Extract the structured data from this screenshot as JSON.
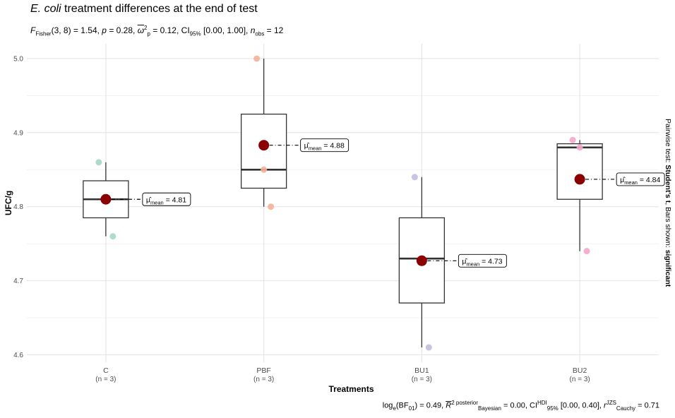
{
  "title": {
    "italic_part": "E. coli",
    "rest": " treatment differences at the end of test"
  },
  "subtitle": {
    "stat_name": "F",
    "stat_sub": "Fisher",
    "df": "(3, 8)",
    "stat_value": " = 1.54, ",
    "p_symbol": "p",
    "p_value": " = 0.28, ",
    "effect_symbol": "ω",
    "effect_sup": "2",
    "effect_sub": "p",
    "effect_value": " = 0.12, CI",
    "ci_sub": "95%",
    "ci_value": " [0.00, 1.00], ",
    "n_symbol": "n",
    "n_sub": "obs",
    "n_value": " = 12"
  },
  "caption": {
    "log_text": "log",
    "log_sub": "e",
    "bf_text": "(BF",
    "bf_sub": "01",
    "bf_value": ") = 0.49, ",
    "r_symbol": "R",
    "r_sup": "2 posterior",
    "r_sub": "Bayesian",
    "r_value": " = 0.00, CI",
    "ci_sup": "HDI",
    "ci_sub": "95%",
    "ci_value": " [0.00, 0.40], ",
    "rc_symbol": "r",
    "rc_sup": "JZS",
    "rc_sub": "Cauchy",
    "rc_value": " = 0.71"
  },
  "right_label": {
    "prefix": "Pairwise test: ",
    "test": "Student's t",
    "middle": ", Bars shown: ",
    "shown": "significant"
  },
  "chart_data": {
    "type": "box",
    "xlabel": "Treatments",
    "ylabel": "UFC/g",
    "ylim": [
      4.59,
      5.02
    ],
    "yticks": [
      4.6,
      4.7,
      4.8,
      4.9,
      5.0
    ],
    "ytick_labels": [
      "4.6",
      "4.7",
      "4.8",
      "4.9",
      "5.0"
    ],
    "grid": true,
    "mean_label_prefix": "μ̂",
    "mean_label_sub": "mean",
    "mean_color": "#8B0000",
    "groups": [
      {
        "name": "C",
        "n_label": "(n = 3)",
        "points": [
          4.86,
          4.81,
          4.76
        ],
        "point_color": "#A6D8C4",
        "q1": 4.785,
        "median": 4.81,
        "q3": 4.835,
        "whisker_low": 4.76,
        "whisker_high": 4.86,
        "mean": 4.81,
        "mean_label": "= 4.81"
      },
      {
        "name": "PBF",
        "n_label": "(n = 3)",
        "points": [
          5.0,
          4.85,
          4.8
        ],
        "point_color": "#F2B399",
        "q1": 4.825,
        "median": 4.85,
        "q3": 4.925,
        "whisker_low": 4.8,
        "whisker_high": 5.0,
        "mean": 4.883,
        "mean_label": "= 4.88"
      },
      {
        "name": "BU1",
        "n_label": "(n = 3)",
        "points": [
          4.84,
          4.73,
          4.61
        ],
        "point_color": "#C2BCE0",
        "q1": 4.67,
        "median": 4.73,
        "q3": 4.785,
        "whisker_low": 4.61,
        "whisker_high": 4.84,
        "mean": 4.727,
        "mean_label": "= 4.73"
      },
      {
        "name": "BU2",
        "n_label": "(n = 3)",
        "points": [
          4.89,
          4.88,
          4.74
        ],
        "point_color": "#F3A6CC",
        "q1": 4.81,
        "median": 4.88,
        "q3": 4.885,
        "whisker_low": 4.74,
        "whisker_high": 4.89,
        "mean": 4.837,
        "mean_label": "= 4.84"
      }
    ]
  }
}
